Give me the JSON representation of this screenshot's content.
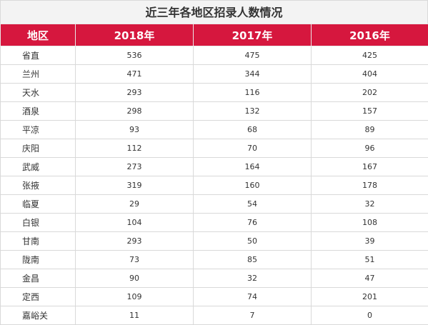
{
  "title": "近三年各地区招录人数情况",
  "headers": [
    "地区",
    "2018年",
    "2017年",
    "2016年"
  ],
  "rows": [
    {
      "region": "省直",
      "y2018": "536",
      "y2017": "475",
      "y2016": "425"
    },
    {
      "region": "兰州",
      "y2018": "471",
      "y2017": "344",
      "y2016": "404"
    },
    {
      "region": "天水",
      "y2018": "293",
      "y2017": "116",
      "y2016": "202"
    },
    {
      "region": "酒泉",
      "y2018": "298",
      "y2017": "132",
      "y2016": "157"
    },
    {
      "region": "平凉",
      "y2018": "93",
      "y2017": "68",
      "y2016": "89"
    },
    {
      "region": "庆阳",
      "y2018": "112",
      "y2017": "70",
      "y2016": "96"
    },
    {
      "region": "武威",
      "y2018": "273",
      "y2017": "164",
      "y2016": "167"
    },
    {
      "region": "张掖",
      "y2018": "319",
      "y2017": "160",
      "y2016": "178"
    },
    {
      "region": "临夏",
      "y2018": "29",
      "y2017": "54",
      "y2016": "32"
    },
    {
      "region": "白银",
      "y2018": "104",
      "y2017": "76",
      "y2016": "108"
    },
    {
      "region": "甘南",
      "y2018": "293",
      "y2017": "50",
      "y2016": "39"
    },
    {
      "region": "陇南",
      "y2018": "73",
      "y2017": "85",
      "y2016": "51"
    },
    {
      "region": "金昌",
      "y2018": "90",
      "y2017": "32",
      "y2016": "47"
    },
    {
      "region": "定西",
      "y2018": "109",
      "y2017": "74",
      "y2016": "201"
    },
    {
      "region": "嘉峪关",
      "y2018": "11",
      "y2017": "7",
      "y2016": "0"
    }
  ],
  "colors": {
    "header_bg": "#d6173e",
    "header_text": "#ffffff",
    "title_bg": "#f3f3f3",
    "border": "#d9d9d9"
  }
}
